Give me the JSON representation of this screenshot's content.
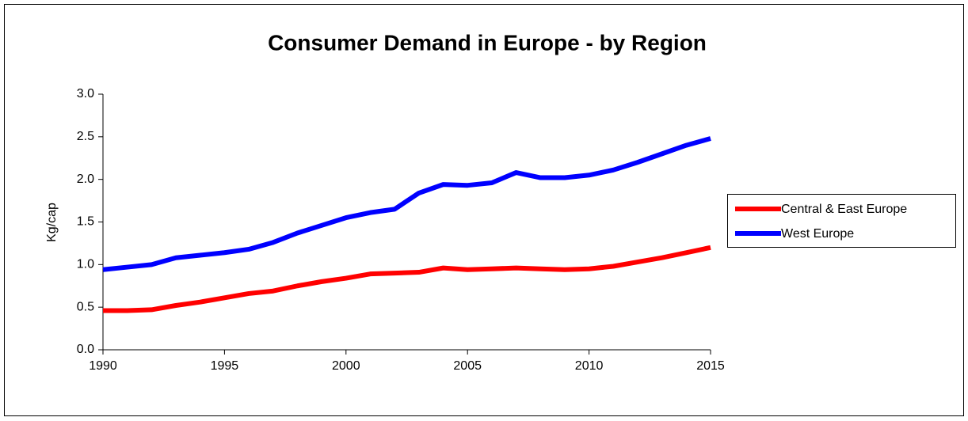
{
  "chart_data": {
    "type": "line",
    "title": "Consumer Demand in Europe - by Region",
    "y_label": "Kg/cap",
    "x": [
      1990,
      1991,
      1992,
      1993,
      1994,
      1995,
      1996,
      1997,
      1998,
      1999,
      2000,
      2001,
      2002,
      2003,
      2004,
      2005,
      2006,
      2007,
      2008,
      2009,
      2010,
      2011,
      2012,
      2013,
      2014,
      2015
    ],
    "series": [
      {
        "name": "Central & East Europe",
        "color": "#ff0000",
        "values": [
          0.46,
          0.46,
          0.47,
          0.52,
          0.56,
          0.61,
          0.66,
          0.69,
          0.75,
          0.8,
          0.84,
          0.89,
          0.9,
          0.91,
          0.96,
          0.94,
          0.95,
          0.96,
          0.95,
          0.94,
          0.95,
          0.98,
          1.03,
          1.08,
          1.14,
          1.2
        ]
      },
      {
        "name": "West Europe",
        "color": "#0000ff",
        "values": [
          0.94,
          0.97,
          1.0,
          1.08,
          1.11,
          1.14,
          1.18,
          1.26,
          1.37,
          1.46,
          1.55,
          1.61,
          1.65,
          1.84,
          1.94,
          1.93,
          1.96,
          2.08,
          2.02,
          2.02,
          2.05,
          2.11,
          2.2,
          2.3,
          2.4,
          2.48
        ]
      }
    ],
    "xlim": [
      1990,
      2015
    ],
    "xticks": [
      1990,
      1995,
      2000,
      2005,
      2010,
      2015
    ],
    "ylim": [
      0,
      3
    ],
    "yticks": [
      {
        "value": 0,
        "label": "0.0"
      },
      0.5,
      {
        "value": 1,
        "label": "1.0"
      },
      1.5,
      {
        "value": 2,
        "label": "2.0"
      },
      2.5,
      {
        "value": 3,
        "label": "3.0"
      }
    ],
    "grid": false,
    "legend": "right"
  }
}
